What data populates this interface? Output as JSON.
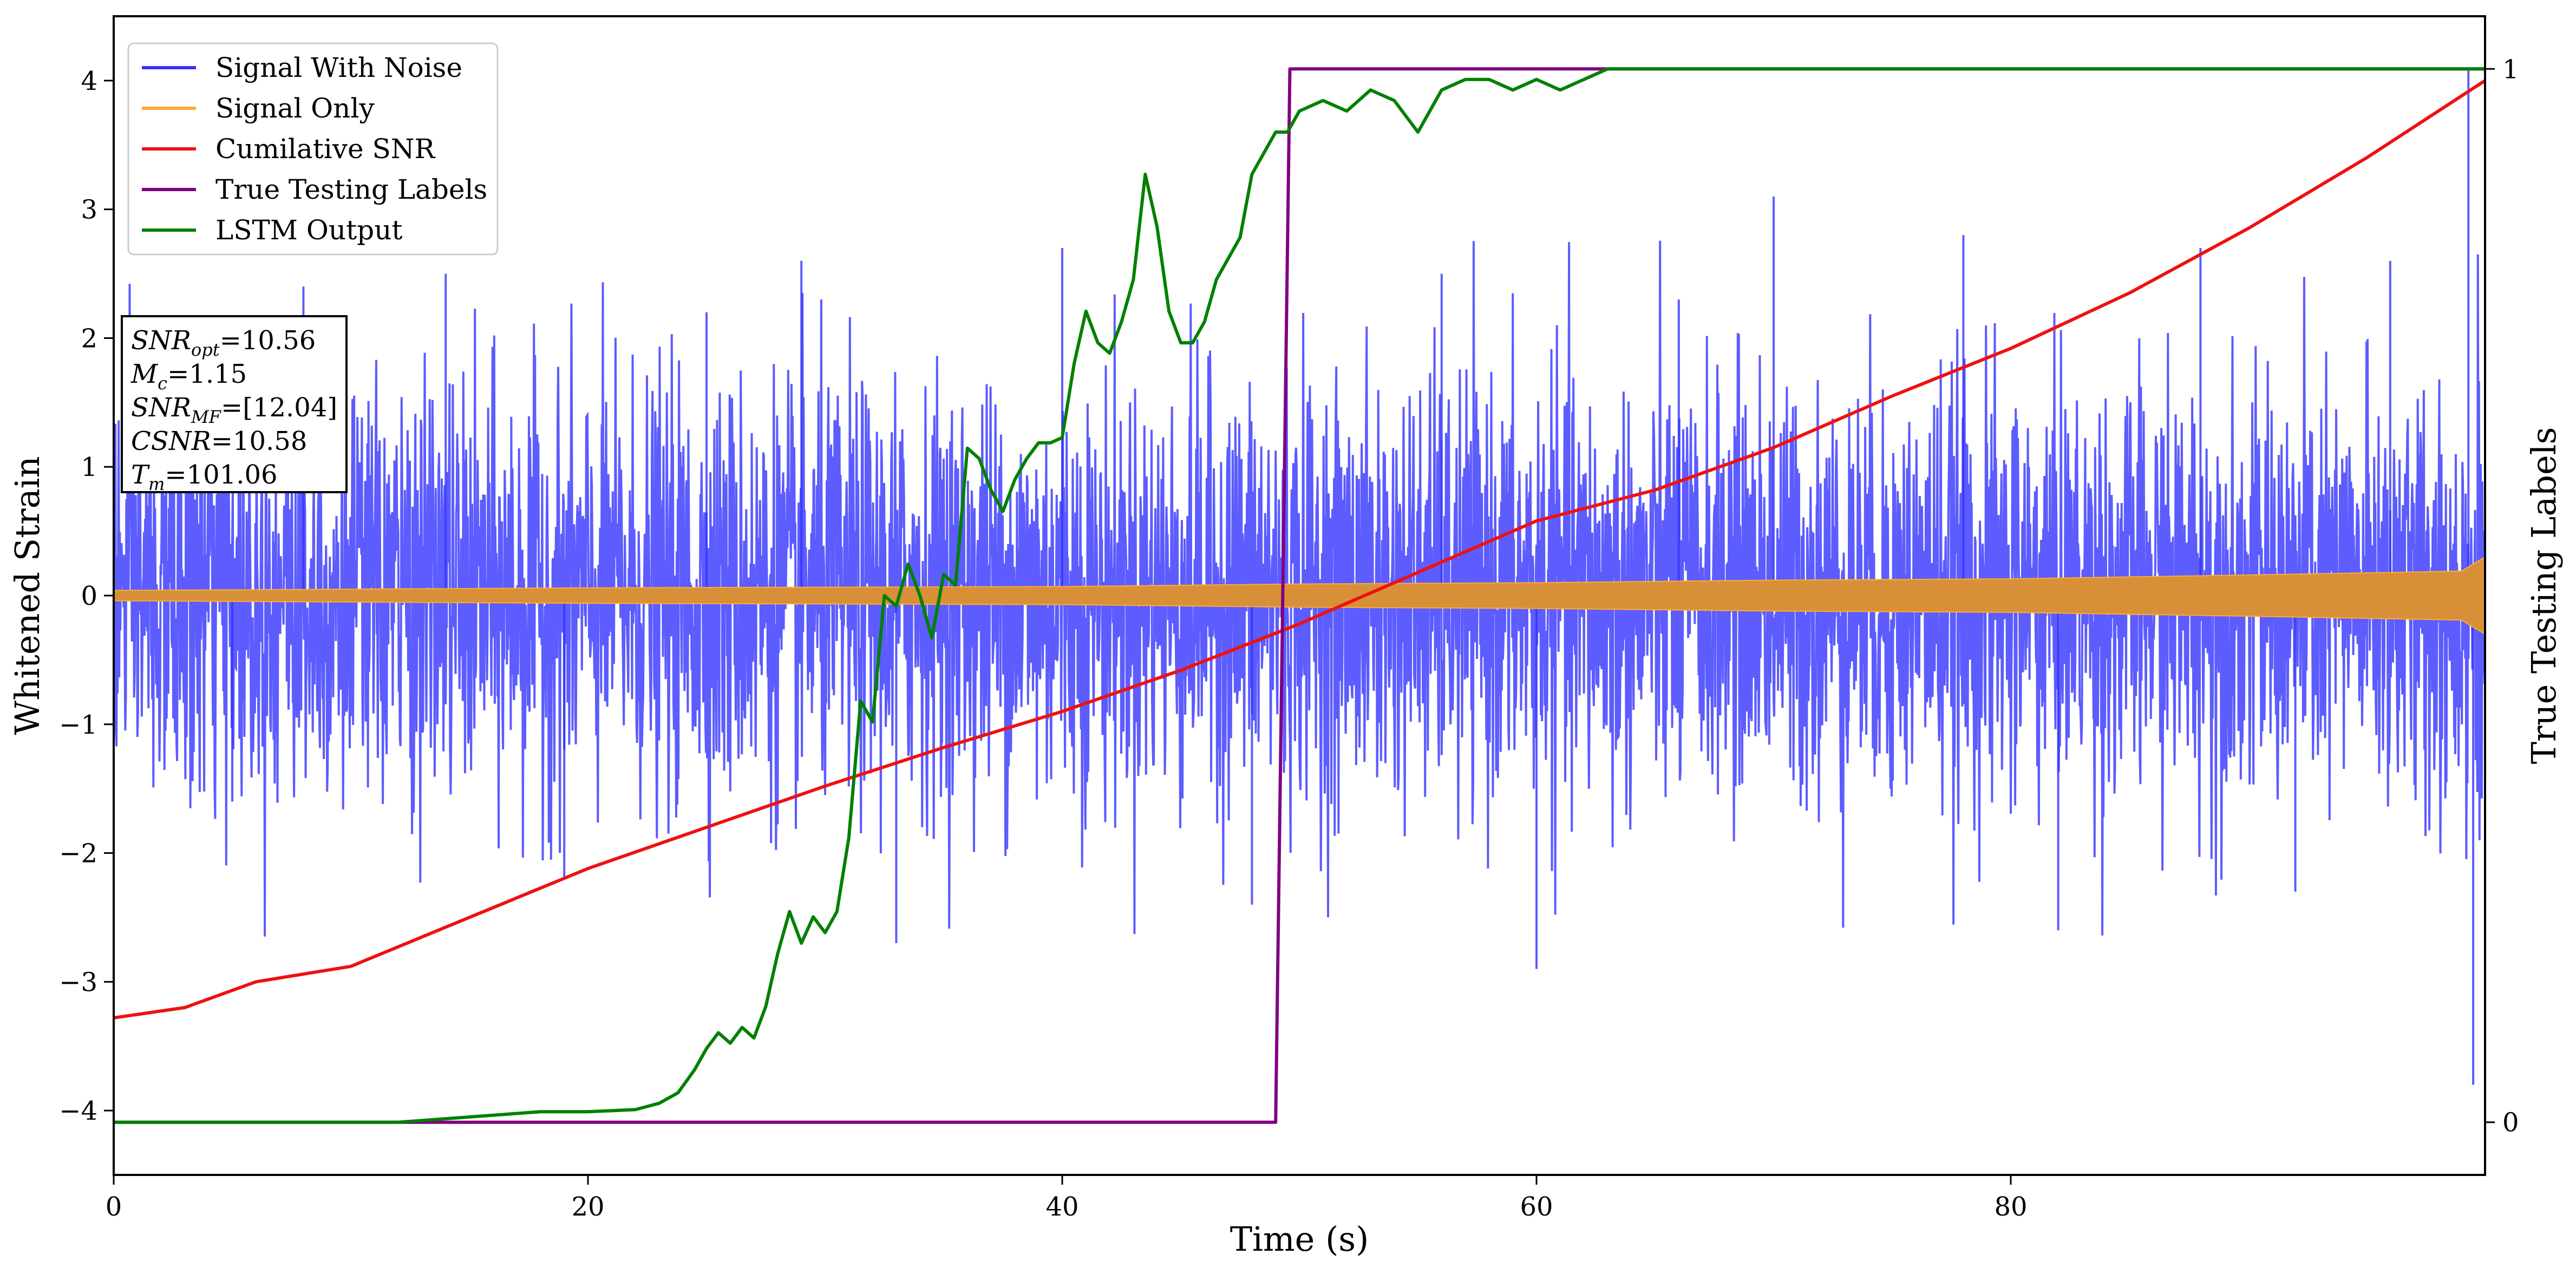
{
  "chart_data": {
    "type": "line",
    "title": "",
    "xlabel": "Time (s)",
    "ylabel": "Whitened Strain",
    "y2label": "True Testing Labels",
    "xlim": [
      0,
      100
    ],
    "ylim": [
      -4.5,
      4.5
    ],
    "y2lim": [
      -0.05,
      1.05
    ],
    "x_ticks": [
      0,
      20,
      40,
      60,
      80
    ],
    "y_ticks": [
      -4,
      -3,
      -2,
      -1,
      0,
      1,
      2,
      3,
      4
    ],
    "y2_ticks": [
      0,
      1
    ],
    "grid": false,
    "legend_position": "top-left",
    "series": [
      {
        "name": "Signal With Noise",
        "axis": "left",
        "color": "#3333ff",
        "style": "dense noise band",
        "amplitude_typical": 1.5,
        "points": [
          [
            0,
            1.5
          ],
          [
            5,
            -1.6
          ],
          [
            8,
            2.4
          ],
          [
            14,
            2.5
          ],
          [
            19,
            -2.2
          ],
          [
            25,
            2.2
          ],
          [
            29,
            2.6
          ],
          [
            33,
            -2.7
          ],
          [
            40,
            2.7
          ],
          [
            48,
            -2.4
          ],
          [
            56,
            2.5
          ],
          [
            60,
            -2.9
          ],
          [
            66,
            2.3
          ],
          [
            70,
            3.1
          ],
          [
            78,
            2.8
          ],
          [
            82,
            -2.6
          ],
          [
            88,
            2.7
          ],
          [
            92,
            -2.3
          ],
          [
            96,
            2.6
          ],
          [
            99.3,
            4.1
          ],
          [
            99.5,
            -3.8
          ],
          [
            100,
            1.8
          ]
        ]
      },
      {
        "name": "Signal Only",
        "axis": "left",
        "color": "#ffaa33",
        "style": "chirp envelope",
        "envelope_x": [
          0,
          20,
          40,
          50,
          60,
          70,
          80,
          90,
          99,
          100
        ],
        "envelope_amp": [
          0.04,
          0.06,
          0.07,
          0.09,
          0.1,
          0.12,
          0.13,
          0.16,
          0.19,
          0.3
        ]
      },
      {
        "name": "Cumilative SNR",
        "axis": "left",
        "color": "#ee1111",
        "x": [
          0,
          3,
          6,
          10,
          15,
          20,
          25,
          30,
          35,
          40,
          45,
          50,
          55,
          60,
          65,
          70,
          75,
          80,
          85,
          90,
          95,
          100
        ],
        "y": [
          -3.28,
          -3.2,
          -3.0,
          -2.88,
          -2.5,
          -2.12,
          -1.8,
          -1.48,
          -1.18,
          -0.9,
          -0.58,
          -0.22,
          0.18,
          0.58,
          0.82,
          1.15,
          1.55,
          1.92,
          2.35,
          2.85,
          3.4,
          4.0
        ]
      },
      {
        "name": "True Testing Labels",
        "axis": "right",
        "color": "#800080",
        "x": [
          0,
          49.0,
          49.6,
          100
        ],
        "y": [
          0,
          0,
          1,
          1
        ]
      },
      {
        "name": "LSTM Output",
        "axis": "right",
        "color": "#008000",
        "x": [
          0,
          12,
          15,
          18,
          20,
          22,
          23,
          23.8,
          24.5,
          25,
          25.5,
          26,
          26.5,
          27,
          27.5,
          28,
          28.5,
          29,
          29.5,
          30,
          30.5,
          31,
          31.5,
          32,
          32.5,
          33,
          33.5,
          34,
          34.5,
          35,
          35.5,
          36,
          36.5,
          37,
          37.5,
          38,
          38.5,
          39,
          39.5,
          40,
          40.5,
          41,
          41.5,
          42,
          42.5,
          43,
          43.5,
          44,
          44.5,
          45,
          45.5,
          46,
          46.5,
          47,
          47.5,
          48,
          48.5,
          49,
          49.5,
          50,
          51,
          52,
          53,
          54,
          55,
          55.5,
          56,
          57,
          58,
          59,
          60,
          61,
          62,
          63,
          65,
          70,
          75,
          80,
          90,
          100
        ],
        "y": [
          0,
          0,
          0.005,
          0.01,
          0.01,
          0.012,
          0.018,
          0.028,
          0.05,
          0.07,
          0.085,
          0.075,
          0.09,
          0.08,
          0.11,
          0.16,
          0.2,
          0.17,
          0.195,
          0.18,
          0.2,
          0.27,
          0.4,
          0.38,
          0.5,
          0.49,
          0.53,
          0.5,
          0.46,
          0.52,
          0.51,
          0.64,
          0.63,
          0.6,
          0.58,
          0.61,
          0.63,
          0.645,
          0.645,
          0.65,
          0.72,
          0.77,
          0.74,
          0.73,
          0.76,
          0.8,
          0.9,
          0.85,
          0.77,
          0.74,
          0.74,
          0.76,
          0.8,
          0.82,
          0.84,
          0.9,
          0.92,
          0.94,
          0.94,
          0.96,
          0.97,
          0.96,
          0.98,
          0.97,
          0.94,
          0.96,
          0.98,
          0.99,
          0.99,
          0.98,
          0.99,
          0.98,
          0.99,
          1.0,
          1.0,
          1.0,
          1.0,
          1.0,
          1.0,
          1.0
        ]
      }
    ],
    "annotation_lines": [
      "SNR_opt=10.56",
      "M_c=1.15",
      "SNR_MF=[12.04]",
      "CSNR=10.58",
      "T_m=101.06"
    ]
  },
  "annotation": {
    "snr_opt_base": "SNR",
    "snr_opt_sub": "opt",
    "snr_opt_value": "=10.56",
    "mc_base": "M",
    "mc_sub": "c",
    "mc_value": "=1.15",
    "snr_mf_base": "SNR",
    "snr_mf_sub": "MF",
    "snr_mf_value": "=[12.04]",
    "csnr_base": "CSNR",
    "csnr_value": "=10.58",
    "tm_base": "T",
    "tm_sub": "m",
    "tm_value": "=101.06"
  }
}
